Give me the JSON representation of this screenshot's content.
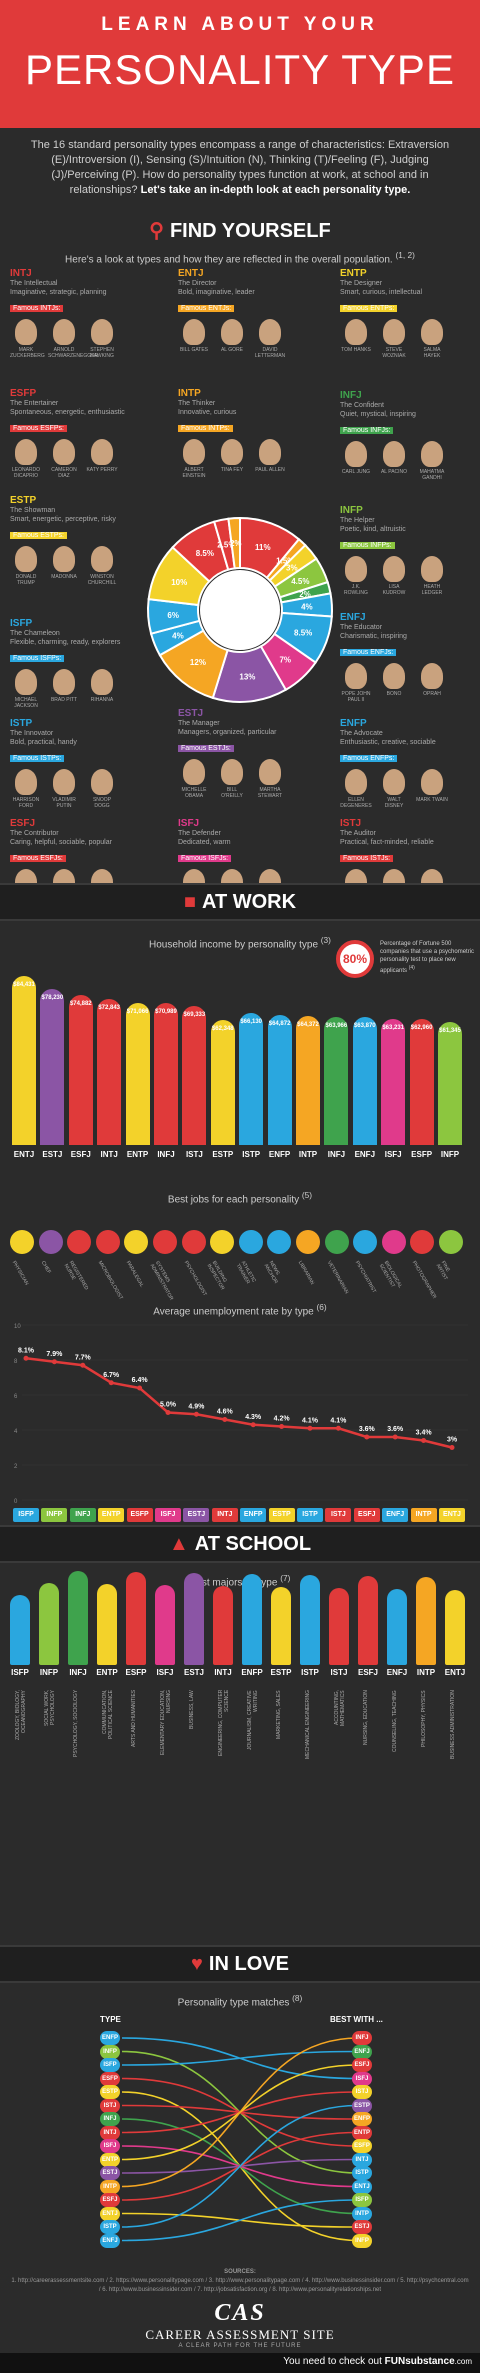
{
  "header": {
    "line1": "LEARN ABOUT YOUR",
    "line2": "PERSONALITY TYPE"
  },
  "intro": {
    "text": "The 16 standard personality types encompass a range of characteristics: Extraversion (E)/Introversion (I), Sensing (S)/Intuition (N), Thinking (T)/Feeling (F), Judging (J)/Perceiving (P). How do personality types function at work, at school and in relationships?",
    "bold": "Let's take an in-depth look at each personality type."
  },
  "find": {
    "title": "FIND YOURSELF",
    "sub": "Here's a look at types and how they are reflected in the overall population.",
    "sup": "(1, 2)"
  },
  "types": [
    {
      "code": "INTJ",
      "desc": "The Intellectual\nImaginative, strategic, planning",
      "famous": "Famous INTJs:",
      "people": [
        "MARK ZUCKERBERG",
        "ARNOLD SCHWARZENEGGER",
        "STEPHEN HAWKING"
      ],
      "color": "#e03a3a"
    },
    {
      "code": "ENTJ",
      "desc": "The Director\nBold, imaginative, leader",
      "famous": "Famous ENTJs:",
      "people": [
        "BILL GATES",
        "AL GORE",
        "DAVID LETTERMAN"
      ],
      "color": "#f5a623"
    },
    {
      "code": "ENTP",
      "desc": "The Designer\nSmart, curious, intellectual",
      "famous": "Famous ENTPs:",
      "people": [
        "TOM HANKS",
        "STEVE WOZNIAK",
        "SALMA HAYEK"
      ],
      "color": "#f3d22a"
    },
    {
      "code": "ESFP",
      "desc": "The Entertainer\nSpontaneous, energetic, enthusiastic",
      "famous": "Famous ESFPs:",
      "people": [
        "LEONARDO DICAPRIO",
        "CAMERON DIAZ",
        "KATY PERRY"
      ],
      "color": "#e03a3a"
    },
    {
      "code": "INTP",
      "desc": "The Thinker\nInnovative, curious",
      "famous": "Famous INTPs:",
      "people": [
        "ALBERT EINSTEIN",
        "TINA FEY",
        "PAUL ALLEN"
      ],
      "color": "#f5a623"
    },
    {
      "code": "INFJ",
      "desc": "The Confident\nQuiet, mystical, inspiring",
      "famous": "Famous INFJs:",
      "people": [
        "CARL JUNG",
        "AL PACINO",
        "MAHATMA GANDHI"
      ],
      "color": "#3fa34d"
    },
    {
      "code": "ESTP",
      "desc": "The Showman\nSmart, energetic, perceptive, risky",
      "famous": "Famous ESTPs:",
      "people": [
        "DONALD TRUMP",
        "MADONNA",
        "WINSTON CHURCHILL"
      ],
      "color": "#f3d22a"
    },
    {
      "code": "INFP",
      "desc": "The Helper\nPoetic, kind, altruistic",
      "famous": "Famous INFPs:",
      "people": [
        "J.K. ROWLING",
        "LISA KUDROW",
        "HEATH LEDGER"
      ],
      "color": "#8cc63f"
    },
    {
      "code": "ISFP",
      "desc": "The Chameleon\nFlexible, charming, ready, explorers",
      "famous": "Famous ISFPs:",
      "people": [
        "MICHAEL JACKSON",
        "BRAD PITT",
        "RIHANNA"
      ],
      "color": "#2aa7df"
    },
    {
      "code": "ENFJ",
      "desc": "The Educator\nCharismatic, inspiring",
      "famous": "Famous ENFJs:",
      "people": [
        "POPE JOHN PAUL II",
        "BONO",
        "OPRAH"
      ],
      "color": "#2aa7df"
    },
    {
      "code": "ISTP",
      "desc": "The Innovator\nBold, practical, handy",
      "famous": "Famous ISTPs:",
      "people": [
        "HARRISON FORD",
        "VLADIMIR PUTIN",
        "SNOOP DOGG"
      ],
      "color": "#2aa7df"
    },
    {
      "code": "ESTJ",
      "desc": "The Manager\nManagers, organized, particular",
      "famous": "Famous ESTJs:",
      "people": [
        "MICHELLE OBAMA",
        "BILL O'REILLY",
        "MARTHA STEWART"
      ],
      "color": "#8b55a5"
    },
    {
      "code": "ENFP",
      "desc": "The Advocate\nEnthusiastic, creative, sociable",
      "famous": "Famous ENFPs:",
      "people": [
        "ELLEN DEGENERES",
        "WALT DISNEY",
        "MARK TWAIN"
      ],
      "color": "#2aa7df"
    },
    {
      "code": "ESFJ",
      "desc": "The Contributor\nCaring, helpful, sociable, popular",
      "famous": "Famous ESFJs:",
      "people": [
        "SARAH PALIN",
        "MARIAH CAREY",
        "PRINCE WILLIAM"
      ],
      "color": "#e03a3a"
    },
    {
      "code": "ISFJ",
      "desc": "The Defender\nDedicated, warm",
      "famous": "Famous ISFJs:",
      "people": [
        "MOTHER TERESA",
        "50 CENT",
        "ANTHONY HOPKINS"
      ],
      "color": "#e03a8b"
    },
    {
      "code": "ISTJ",
      "desc": "The Auditor\nPractical, fact-minded, reliable",
      "famous": "Famous ISTJs:",
      "people": [
        "WARREN BUFFETT",
        "NATALIE PORTMAN",
        "SEAN CONNERY"
      ],
      "color": "#e03a3a"
    }
  ],
  "pie": [
    {
      "label": "11%",
      "value": 11,
      "color": "#e03a3a"
    },
    {
      "label": "1.5%",
      "value": 1.5,
      "color": "#f5a623"
    },
    {
      "label": "3%",
      "value": 3,
      "color": "#f3d22a"
    },
    {
      "label": "4.5%",
      "value": 4.5,
      "color": "#8cc63f"
    },
    {
      "label": "2%",
      "value": 2,
      "color": "#3fa34d"
    },
    {
      "label": "4%",
      "value": 4,
      "color": "#2aa7df"
    },
    {
      "label": "8.5%",
      "value": 8.5,
      "color": "#2aa7df"
    },
    {
      "label": "7%",
      "value": 7,
      "color": "#e03a8b"
    },
    {
      "label": "13%",
      "value": 13,
      "color": "#8b55a5"
    },
    {
      "label": "12%",
      "value": 12,
      "color": "#f5a623"
    },
    {
      "label": "4%",
      "value": 4,
      "color": "#2aa7df"
    },
    {
      "label": "6%",
      "value": 6,
      "color": "#2aa7df"
    },
    {
      "label": "10%",
      "value": 10,
      "color": "#f3d22a"
    },
    {
      "label": "8.5%",
      "value": 8.5,
      "color": "#e03a3a"
    },
    {
      "label": "2.5%",
      "value": 2.5,
      "color": "#e03a3a"
    },
    {
      "label": "2%",
      "value": 2,
      "color": "#f5a623"
    }
  ],
  "work": {
    "title": "AT WORK",
    "income_title": "Household income by personality type",
    "income_sup": "(3)",
    "fortune_pct": "80%",
    "fortune_text": "Percentage of Fortune 500 companies that use a psychometric personality test to place new applicants",
    "fortune_sup": "(4)"
  },
  "chart_data": [
    {
      "type": "bar",
      "title": "Household income by personality type",
      "categories": [
        "ENTJ",
        "ESTJ",
        "ESFJ",
        "INTJ",
        "ENTP",
        "INFJ",
        "ISTJ",
        "ESTP",
        "ISTP",
        "ENFP",
        "INTP",
        "INFJ",
        "ENFJ",
        "ISFJ",
        "ESFP",
        "INFP"
      ],
      "values": [
        84431,
        78230,
        74882,
        72843,
        71066,
        70989,
        69333,
        62348,
        66130,
        64872,
        64372,
        63966,
        63870,
        63231,
        62960,
        61345
      ],
      "labels": [
        "$84,431",
        "$78,230",
        "$74,882",
        "$72,843",
        "$71,066",
        "$70,989",
        "$69,333",
        "$62,348",
        "$66,130",
        "$64,872",
        "$64,372",
        "$63,966",
        "$63,870",
        "$63,231",
        "$62,960",
        "$61,345"
      ],
      "colors": [
        "#f3d22a",
        "#8b55a5",
        "#e03a3a",
        "#e03a3a",
        "#f3d22a",
        "#e03a3a",
        "#e03a3a",
        "#f3d22a",
        "#2aa7df",
        "#2aa7df",
        "#f5a623",
        "#3fa34d",
        "#2aa7df",
        "#e03a8b",
        "#e03a3a",
        "#8cc63f"
      ]
    },
    {
      "type": "line",
      "title": "Average unemployment rate by type",
      "sup": "(6)",
      "categories": [
        "ISFP",
        "INFP",
        "INFJ",
        "ENTP",
        "ESFP",
        "ISFJ",
        "ESTJ",
        "INTJ",
        "ENFP",
        "ESTP",
        "ISTP",
        "ISTJ",
        "ESFJ",
        "ENFJ",
        "INTP",
        "ENTJ"
      ],
      "values": [
        8.1,
        7.9,
        7.7,
        6.7,
        6.4,
        5.0,
        4.9,
        4.6,
        4.3,
        4.2,
        4.1,
        4.1,
        3.6,
        3.6,
        3.4,
        3.0
      ],
      "labels": [
        "8.1%",
        "7.9%",
        "7.7%",
        "6.7%",
        "6.4%",
        "5.0%",
        "4.9%",
        "4.6%",
        "4.3%",
        "4.2%",
        "4.1%",
        "4.1%",
        "3.6%",
        "3.6%",
        "3.4%",
        "3%"
      ],
      "colors": [
        "#2aa7df",
        "#8cc63f",
        "#3fa34d",
        "#f3d22a",
        "#e03a3a",
        "#e03a8b",
        "#8b55a5",
        "#e03a3a",
        "#2aa7df",
        "#f3d22a",
        "#2aa7df",
        "#e03a3a",
        "#e03a3a",
        "#2aa7df",
        "#f5a623",
        "#f3d22a"
      ],
      "ylim": [
        0,
        10
      ]
    }
  ],
  "jobs": {
    "title": "Best jobs for each personality",
    "sup": "(5)",
    "items": [
      {
        "label": "PHYSICIAN",
        "color": "#f3d22a"
      },
      {
        "label": "CHEF",
        "color": "#8b55a5"
      },
      {
        "label": "REGISTERED NURSE",
        "color": "#e03a3a"
      },
      {
        "label": "MICROBIOLOGIST",
        "color": "#e03a3a"
      },
      {
        "label": "PARALEGAL",
        "color": "#f3d22a"
      },
      {
        "label": "SYSTEMS ADMINISTRATOR",
        "color": "#e03a3a"
      },
      {
        "label": "PSYCHOLOGIST",
        "color": "#e03a3a"
      },
      {
        "label": "BUILDING INSPECTOR",
        "color": "#f3d22a"
      },
      {
        "label": "ATHLETIC TRAINER",
        "color": "#2aa7df"
      },
      {
        "label": "NEWS ANCHOR",
        "color": "#2aa7df"
      },
      {
        "label": "LIBRARIAN",
        "color": "#f5a623"
      },
      {
        "label": "VETERINARIAN",
        "color": "#3fa34d"
      },
      {
        "label": "PSYCHIATRIST",
        "color": "#2aa7df"
      },
      {
        "label": "BIOLOGICAL SCIENTIST",
        "color": "#e03a8b"
      },
      {
        "label": "PHOTOGRAPHER",
        "color": "#e03a3a"
      },
      {
        "label": "FINE ARTIST",
        "color": "#8cc63f"
      }
    ]
  },
  "school": {
    "title": "AT SCHOOL",
    "sub": "Best majors by type",
    "sup": "(7)",
    "items": [
      {
        "type": "ISFP",
        "major": "ZOOLOGY, BIOLOGY, OCEANOGRAPHY",
        "color": "#2aa7df"
      },
      {
        "type": "INFP",
        "major": "SOCIAL WORK, PSYCHOLOGY",
        "color": "#8cc63f"
      },
      {
        "type": "INFJ",
        "major": "PSYCHOLOGY, SOCIOLOGY",
        "color": "#3fa34d"
      },
      {
        "type": "ENTP",
        "major": "COMMUNICATION, POLITICAL SCIENCE",
        "color": "#f3d22a"
      },
      {
        "type": "ESFP",
        "major": "ARTS AND HUMANITIES",
        "color": "#e03a3a"
      },
      {
        "type": "ISFJ",
        "major": "ELEMENTARY EDUCATION, NURSING",
        "color": "#e03a8b"
      },
      {
        "type": "ESTJ",
        "major": "BUSINESS, LAW",
        "color": "#8b55a5"
      },
      {
        "type": "INTJ",
        "major": "ENGINEERING, COMPUTER SCIENCE",
        "color": "#e03a3a"
      },
      {
        "type": "ENFP",
        "major": "JOURNALISM, CREATIVE WRITING",
        "color": "#2aa7df"
      },
      {
        "type": "ESTP",
        "major": "MARKETING, SALES",
        "color": "#f3d22a"
      },
      {
        "type": "ISTP",
        "major": "MECHANICAL ENGINEERING",
        "color": "#2aa7df"
      },
      {
        "type": "ISTJ",
        "major": "ACCOUNTING, MATHEMATICS",
        "color": "#e03a3a"
      },
      {
        "type": "ESFJ",
        "major": "NURSING, EDUCATION",
        "color": "#e03a3a"
      },
      {
        "type": "ENFJ",
        "major": "COUNSELING, TEACHING",
        "color": "#2aa7df"
      },
      {
        "type": "INTP",
        "major": "PHILOSOPHY, PHYSICS",
        "color": "#f5a623"
      },
      {
        "type": "ENTJ",
        "major": "BUSINESS ADMINISTRATION",
        "color": "#f3d22a"
      }
    ]
  },
  "love": {
    "title": "IN LOVE",
    "sub": "Personality type matches",
    "sup": "(8)",
    "left_head": "TYPE",
    "right_head": "BEST WITH ...",
    "left": [
      "ENFP",
      "INFP",
      "ISFP",
      "ESFP",
      "ESTP",
      "ISTJ",
      "INFJ",
      "INTJ",
      "ISFJ",
      "ENTP",
      "ESTJ",
      "INTP",
      "ESFJ",
      "ENTJ",
      "ISTP",
      "ENFJ"
    ],
    "right": [
      "INFJ",
      "ENFJ",
      "ESFJ",
      "ISFJ",
      "ISTJ",
      "ESTP",
      "ENFP",
      "ENTP",
      "ESFP",
      "INTJ",
      "ISTP",
      "ENTJ",
      "ISFP",
      "INTP",
      "ESTJ",
      "INFP"
    ],
    "colors": [
      "#2aa7df",
      "#8cc63f",
      "#2aa7df",
      "#e03a3a",
      "#f3d22a",
      "#e03a3a",
      "#3fa34d",
      "#e03a3a",
      "#e03a8b",
      "#f3d22a",
      "#8b55a5",
      "#f5a623",
      "#e03a3a",
      "#f3d22a",
      "#2aa7df",
      "#2aa7df"
    ]
  },
  "sources": {
    "title": "SOURCES:",
    "text": "1. http://careerassessmentsite.com / 2. https://www.personalitypage.com / 3. http://www.personalitypage.com / 4. http://www.businessinsider.com / 5. http://psychcentral.com / 6. http://www.businessinsider.com / 7. http://jobsatisfaction.org / 8. http://www.personalityrelationships.net"
  },
  "logo": {
    "mark": "CAS",
    "name": "CAREER ASSESSMENT SITE",
    "tag": "A CLEAR PATH FOR THE FUTURE"
  },
  "footer": {
    "text": "You need to check out",
    "brand": "FUNsubstance",
    "dom": ".com"
  }
}
